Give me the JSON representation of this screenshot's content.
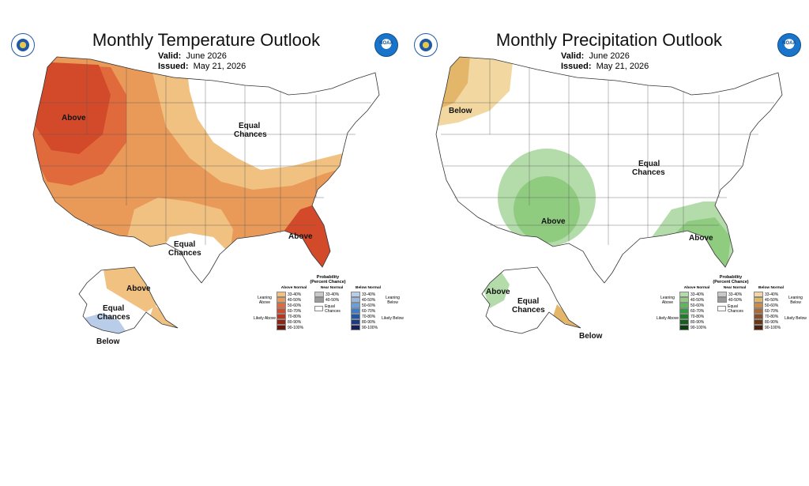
{
  "temperature": {
    "title": "Monthly Temperature Outlook",
    "valid_label": "Valid:",
    "valid_value": "June 2026",
    "issued_label": "Issued:",
    "issued_value": "May 21, 2026",
    "regions": {
      "above_west": "Above",
      "equal_north": "Equal",
      "equal_north2": "Chances",
      "equal_texas": "Equal",
      "equal_texas2": "Chances",
      "above_southeast": "Above",
      "above_alaska": "Above",
      "equal_alaska": "Equal",
      "equal_alaska2": "Chances",
      "below_alaska": "Below"
    },
    "legend": {
      "title": "Probability",
      "subtitle": "(Percent Chance)",
      "above_head": "Above Normal",
      "near_head": "Near Normal",
      "below_head": "Below Normal",
      "leaning_above": "Leaning Above",
      "likely_above": "Likely Above",
      "leaning_below": "Leaning Below",
      "likely_below": "Likely Below",
      "equal": "Equal Chances",
      "ranges": [
        "33-40%",
        "40-50%",
        "50-60%",
        "60-70%",
        "70-80%",
        "80-90%",
        "90-100%"
      ],
      "near_ranges": [
        "33-40%",
        "40-50%"
      ],
      "above_colors": [
        "#f0c181",
        "#e99a58",
        "#e06a3c",
        "#d24a2a",
        "#b8341c",
        "#8e2411",
        "#6a1608"
      ],
      "near_colors": [
        "#c8c8c8",
        "#9a9a9a"
      ],
      "below_colors": [
        "#b9cce8",
        "#95b7e0",
        "#6aa0da",
        "#3b7dcc",
        "#1f58a8",
        "#1b3b86",
        "#17205e"
      ]
    }
  },
  "precipitation": {
    "title": "Monthly Precipitation Outlook",
    "valid_label": "Valid:",
    "valid_value": "June 2026",
    "issued_label": "Issued:",
    "issued_value": "May 21, 2026",
    "regions": {
      "below_nw": "Below",
      "equal_central": "Equal",
      "equal_central2": "Chances",
      "above_sw": "Above",
      "above_se": "Above",
      "above_alaska": "Above",
      "equal_alaska": "Equal",
      "equal_alaska2": "Chances",
      "below_alaska": "Below"
    },
    "legend": {
      "title": "Probability",
      "subtitle": "(Percent Chance)",
      "above_head": "Above Normal",
      "near_head": "Near Normal",
      "below_head": "Below Normal",
      "leaning_above": "Leaning Above",
      "likely_above": "Likely Above",
      "leaning_below": "Leaning Below",
      "likely_below": "Likely Below",
      "equal": "Equal Chances",
      "ranges": [
        "33-40%",
        "40-50%",
        "50-60%",
        "60-70%",
        "70-80%",
        "80-90%",
        "90-100%"
      ],
      "near_ranges": [
        "33-40%",
        "40-50%"
      ],
      "above_colors": [
        "#b4dcaa",
        "#8fcc80",
        "#5db85a",
        "#2f9d3b",
        "#1f7e2a",
        "#145e1e",
        "#0b3f12"
      ],
      "near_colors": [
        "#c8c8c8",
        "#9a9a9a"
      ],
      "below_colors": [
        "#f2d8a0",
        "#e4b669",
        "#c98c4a",
        "#a86a36",
        "#8a4e26",
        "#6b3618",
        "#4e220f"
      ]
    }
  },
  "colors": {
    "temp_above_1": "#f0c181",
    "temp_above_2": "#e99a58",
    "temp_above_3": "#e06a3c",
    "temp_above_4": "#d24a2a",
    "temp_below_1": "#b9cce8",
    "precip_above_1": "#b4dcaa",
    "precip_above_2": "#8fcc80",
    "precip_below_1": "#f2d8a0",
    "precip_below_2": "#e4b669"
  }
}
